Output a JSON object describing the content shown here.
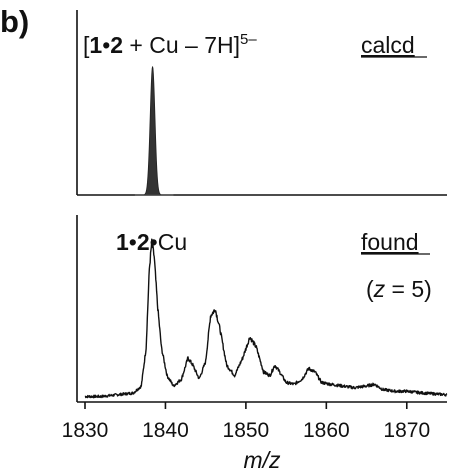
{
  "panel_label": "b)",
  "chart_data": [
    {
      "type": "line",
      "panel": "calcd",
      "annotation": {
        "bracket_open": "[",
        "bold_a": "1",
        "dot": "•",
        "bold_b": "2",
        "rest": " + Cu – 7H]",
        "superscript": "5–"
      },
      "label": "calcd",
      "xlim": [
        1830,
        1875
      ],
      "ylim": [
        0,
        1.05
      ],
      "peak_center": 1838.4,
      "peak_fwhm": 0.7,
      "fill_color": "#333333"
    },
    {
      "type": "line",
      "panel": "found",
      "annotation": {
        "bold_a": "1",
        "dot": "•",
        "bold_b": "2",
        "dot2": "•",
        "rest": "Cu"
      },
      "label": "found",
      "charge_label": {
        "open": "(",
        "var": "z",
        "rest": " = 5)"
      },
      "xlim": [
        1830,
        1875
      ],
      "ylim": [
        0,
        1.0
      ],
      "xticks": [
        1830,
        1840,
        1850,
        1860,
        1870
      ],
      "xlabel": "m/z",
      "x": [
        1830,
        1832,
        1834,
        1836,
        1837,
        1837.6,
        1838.0,
        1838.3,
        1838.6,
        1839.0,
        1839.5,
        1840.2,
        1841.0,
        1842.0,
        1842.8,
        1843.4,
        1844.2,
        1845.0,
        1845.6,
        1846.2,
        1846.8,
        1847.6,
        1848.6,
        1849.6,
        1850.5,
        1851.3,
        1852.2,
        1853.0,
        1853.6,
        1854.2,
        1855.0,
        1856.0,
        1857.0,
        1857.8,
        1858.6,
        1859.4,
        1860.5,
        1862.0,
        1863.5,
        1865.0,
        1866.0,
        1867.0,
        1868.5,
        1870.0,
        1872.0,
        1875.0
      ],
      "y": [
        0.02,
        0.02,
        0.03,
        0.04,
        0.08,
        0.3,
        0.75,
        0.9,
        0.82,
        0.55,
        0.3,
        0.14,
        0.08,
        0.12,
        0.24,
        0.2,
        0.12,
        0.22,
        0.48,
        0.52,
        0.4,
        0.2,
        0.14,
        0.24,
        0.36,
        0.3,
        0.16,
        0.14,
        0.2,
        0.16,
        0.1,
        0.09,
        0.12,
        0.18,
        0.16,
        0.1,
        0.09,
        0.08,
        0.07,
        0.08,
        0.09,
        0.06,
        0.05,
        0.05,
        0.04,
        0.03
      ],
      "line_color": "#111111"
    }
  ]
}
